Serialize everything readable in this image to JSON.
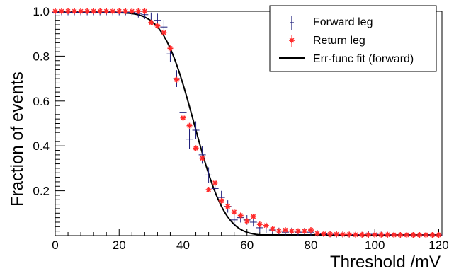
{
  "chart_data": {
    "type": "scatter",
    "title": "",
    "xlabel": "Threshold /mV",
    "ylabel": "Fraction of events",
    "xlim": [
      0,
      121
    ],
    "ylim": [
      0,
      1.0
    ],
    "x_ticks": [
      "0",
      "20",
      "40",
      "60",
      "80",
      "100",
      "120"
    ],
    "y_ticks": [
      "0.2",
      "0.4",
      "0.6",
      "0.8",
      "1.0"
    ],
    "legend_position": "top-right",
    "grid": false,
    "colors": {
      "forward": "#1c1c7a",
      "return": "#ff2a2a",
      "fit": "#000000"
    },
    "series": [
      {
        "name": "Forward leg",
        "marker": "plus-with-errorbars",
        "x": [
          0,
          2,
          4,
          6,
          8,
          10,
          12,
          14,
          16,
          18,
          20,
          22,
          24,
          26,
          28,
          30,
          32,
          34,
          36,
          38,
          40,
          42,
          44,
          46,
          48,
          50,
          52,
          54,
          56,
          58,
          60,
          62,
          64,
          66,
          68,
          70,
          72,
          74,
          76,
          78,
          80,
          82,
          84,
          86,
          88,
          90,
          92,
          94,
          96,
          98,
          100,
          102,
          104,
          106,
          108,
          110,
          112,
          114,
          116,
          118,
          120
        ],
        "y": [
          0.995,
          0.995,
          0.995,
          0.995,
          0.995,
          0.995,
          0.995,
          0.995,
          0.995,
          0.995,
          0.995,
          0.995,
          0.995,
          0.99,
          0.985,
          0.97,
          0.96,
          0.93,
          0.81,
          0.7,
          0.55,
          0.43,
          0.47,
          0.36,
          0.27,
          0.21,
          0.17,
          0.13,
          0.07,
          0.08,
          0.07,
          0.06,
          0.035,
          0.03,
          0.025,
          0.02,
          0.015,
          0.02,
          0.015,
          0.02,
          0.015,
          0.01,
          0.008,
          0.006,
          0.005,
          0.005,
          0.004,
          0.004,
          0.004,
          0.006,
          0.006,
          0.005,
          0.004,
          0.004,
          0.003,
          0.003,
          0.003,
          0.003,
          0.003,
          0.003,
          0.003
        ],
        "yerr": [
          0.003,
          0.003,
          0.003,
          0.003,
          0.003,
          0.003,
          0.003,
          0.003,
          0.003,
          0.003,
          0.003,
          0.003,
          0.003,
          0.008,
          0.01,
          0.015,
          0.02,
          0.022,
          0.025,
          0.028,
          0.03,
          0.035,
          0.03,
          0.03,
          0.025,
          0.022,
          0.02,
          0.018,
          0.015,
          0.012,
          0.012,
          0.01,
          0.01,
          0.008,
          0.008,
          0.006,
          0.006,
          0.006,
          0.005,
          0.005,
          0.005,
          0.005,
          0.004,
          0.004,
          0.004,
          0.004,
          0.003,
          0.003,
          0.003,
          0.006,
          0.004,
          0.003,
          0.003,
          0.003,
          0.003,
          0.003,
          0.003,
          0.003,
          0.003,
          0.003,
          0.003
        ]
      },
      {
        "name": "Return leg",
        "marker": "star",
        "x": [
          0,
          2,
          4,
          6,
          8,
          10,
          12,
          14,
          16,
          18,
          20,
          22,
          24,
          26,
          28,
          30,
          32,
          34,
          36,
          38,
          40,
          42,
          44,
          46,
          48,
          50,
          52,
          54,
          56,
          58,
          60,
          62,
          64,
          66,
          68,
          70,
          72,
          74,
          76,
          78,
          80,
          82,
          84,
          86,
          88,
          90,
          92,
          94,
          96,
          98,
          100,
          102,
          104,
          106,
          108,
          110,
          112,
          114,
          116,
          118,
          120
        ],
        "y": [
          1.0,
          1.0,
          1.0,
          1.0,
          1.0,
          1.0,
          1.0,
          1.0,
          1.0,
          1.0,
          1.0,
          1.0,
          1.0,
          1.0,
          1.0,
          0.95,
          0.935,
          0.905,
          0.835,
          0.695,
          0.525,
          0.49,
          0.39,
          0.345,
          0.205,
          0.235,
          0.155,
          0.13,
          0.105,
          0.09,
          0.065,
          0.085,
          0.05,
          0.045,
          0.03,
          0.02,
          0.025,
          0.02,
          0.02,
          0.02,
          0.025,
          0.01,
          0.008,
          0.006,
          0.006,
          0.005,
          0.005,
          0.004,
          0.004,
          0.004,
          0.004,
          0.004,
          0.004,
          0.003,
          0.003,
          0.003,
          0.003,
          0.003,
          0.003,
          0.003,
          0.003
        ]
      },
      {
        "name": "Err-func fit (forward)",
        "type": "line",
        "function": "erfc",
        "params": {
          "mean": 43.5,
          "sigma": 7.6,
          "amplitude": 0.995
        },
        "x_range": [
          0,
          120
        ]
      }
    ]
  }
}
